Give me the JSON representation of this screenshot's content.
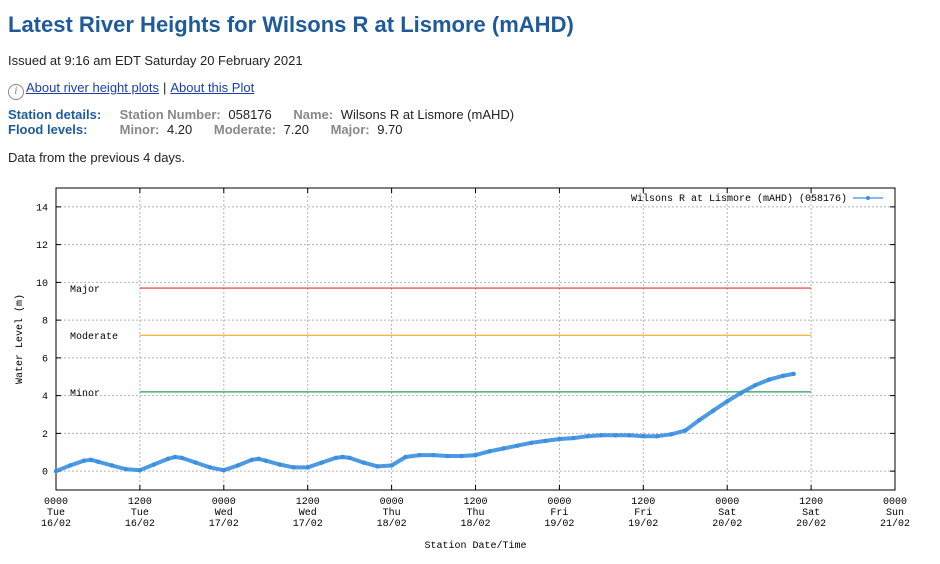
{
  "page": {
    "title": "Latest River Heights for Wilsons R at Lismore (mAHD)",
    "issued": "Issued at 9:16 am EDT Saturday 20 February 2021",
    "links": {
      "about_plots": "About river height plots",
      "separator": "|",
      "about_plot": "About this Plot"
    },
    "station": {
      "label": "Station details:",
      "number_key": "Station Number:",
      "number": "058176",
      "name_key": "Name:",
      "name": "Wilsons R at Lismore (mAHD)"
    },
    "flood": {
      "label": "Flood levels:",
      "minor_key": "Minor:",
      "minor": "4.20",
      "moderate_key": "Moderate:",
      "moderate": "7.20",
      "major_key": "Major:",
      "major": "9.70"
    },
    "note": "Data from the previous 4 days."
  },
  "chart_data": {
    "type": "line",
    "title": "",
    "xlabel": "Station Date/Time",
    "ylabel": "Water Level (m)",
    "xlim": [
      0,
      120
    ],
    "ylim": [
      -1,
      15
    ],
    "x_tick_labels": [
      {
        "t": 0,
        "time": "0000",
        "day": "Tue",
        "date": "16/02"
      },
      {
        "t": 12,
        "time": "1200",
        "day": "Tue",
        "date": "16/02"
      },
      {
        "t": 24,
        "time": "0000",
        "day": "Wed",
        "date": "17/02"
      },
      {
        "t": 36,
        "time": "1200",
        "day": "Wed",
        "date": "17/02"
      },
      {
        "t": 48,
        "time": "0000",
        "day": "Thu",
        "date": "18/02"
      },
      {
        "t": 60,
        "time": "1200",
        "day": "Thu",
        "date": "18/02"
      },
      {
        "t": 72,
        "time": "0000",
        "day": "Fri",
        "date": "19/02"
      },
      {
        "t": 84,
        "time": "1200",
        "day": "Fri",
        "date": "19/02"
      },
      {
        "t": 96,
        "time": "0000",
        "day": "Sat",
        "date": "20/02"
      },
      {
        "t": 108,
        "time": "1200",
        "day": "Sat",
        "date": "20/02"
      },
      {
        "t": 120,
        "time": "0000",
        "day": "Sun",
        "date": "21/02"
      }
    ],
    "y_ticks": [
      0,
      2,
      4,
      6,
      8,
      10,
      12,
      14
    ],
    "grid": true,
    "legend_position": "top-right",
    "thresholds": [
      {
        "name": "Major",
        "value": 9.7,
        "color": "#e53030"
      },
      {
        "name": "Moderate",
        "value": 7.2,
        "color": "#f0b030"
      },
      {
        "name": "Minor",
        "value": 4.2,
        "color": "#2a9d5a"
      }
    ],
    "threshold_extent": [
      12,
      108
    ],
    "series": [
      {
        "name": "Wilsons R at Lismore (mAHD) (058176)",
        "color": "#3a8fe0",
        "x": [
          0,
          2,
          4,
          5,
          6,
          8,
          10,
          12,
          14,
          16,
          17,
          18,
          20,
          22,
          24,
          26,
          28,
          29,
          30,
          32,
          34,
          36,
          38,
          40,
          41,
          42,
          44,
          46,
          48,
          50,
          52,
          54,
          56,
          58,
          60,
          62,
          64,
          66,
          68,
          70,
          72,
          74,
          76,
          78,
          80,
          82,
          84,
          86,
          88,
          90,
          92,
          94,
          96,
          98,
          100,
          102,
          104,
          105.5
        ],
        "values": [
          0.0,
          0.3,
          0.55,
          0.6,
          0.5,
          0.3,
          0.1,
          0.05,
          0.35,
          0.65,
          0.75,
          0.7,
          0.45,
          0.2,
          0.05,
          0.3,
          0.6,
          0.65,
          0.55,
          0.35,
          0.2,
          0.2,
          0.45,
          0.7,
          0.75,
          0.7,
          0.45,
          0.25,
          0.3,
          0.75,
          0.85,
          0.85,
          0.8,
          0.8,
          0.85,
          1.05,
          1.2,
          1.35,
          1.5,
          1.6,
          1.7,
          1.75,
          1.85,
          1.9,
          1.9,
          1.9,
          1.85,
          1.85,
          1.95,
          2.15,
          2.7,
          3.2,
          3.7,
          4.15,
          4.55,
          4.85,
          5.05,
          5.15
        ]
      }
    ]
  }
}
